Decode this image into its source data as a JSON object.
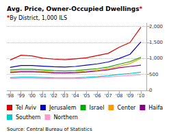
{
  "chart_data": {
    "type": "line",
    "title": "Avg. Price, Owner-Occupied Dwellings*",
    "subtitle": "*By District, 1,000 ILS",
    "annotations": [
      "Source: Central Bureau of Statistics"
    ],
    "x": [
      1998,
      1999,
      2000,
      2001,
      2002,
      2003,
      2004,
      2005,
      2006,
      2007,
      2008,
      2009,
      2010
    ],
    "series": [
      {
        "name": "Tel Aviv",
        "color": "#dd0000",
        "values": [
          950,
          1100,
          1080,
          1010,
          980,
          960,
          990,
          1020,
          1090,
          1160,
          1350,
          1500,
          1980
        ]
      },
      {
        "name": "Jerusalem",
        "color": "#0000cc",
        "values": [
          720,
          780,
          780,
          760,
          740,
          730,
          750,
          790,
          830,
          890,
          1000,
          1130,
          1520
        ]
      },
      {
        "name": "Israel",
        "color": "#00aa00",
        "values": [
          640,
          660,
          660,
          640,
          620,
          610,
          620,
          650,
          680,
          730,
          820,
          900,
          1040
        ]
      },
      {
        "name": "Center",
        "color": "#ff9900",
        "values": [
          590,
          610,
          610,
          590,
          570,
          560,
          570,
          600,
          630,
          680,
          760,
          840,
          1010
        ]
      },
      {
        "name": "Haifa",
        "color": "#880088",
        "values": [
          560,
          580,
          580,
          570,
          550,
          545,
          555,
          575,
          605,
          645,
          710,
          750,
          790
        ]
      },
      {
        "name": "Southern",
        "color": "#00cccc",
        "values": [
          400,
          415,
          415,
          405,
          395,
          390,
          395,
          410,
          430,
          460,
          500,
          530,
          570
        ]
      },
      {
        "name": "Northern",
        "color": "#ff99cc",
        "values": [
          370,
          385,
          385,
          378,
          370,
          365,
          372,
          382,
          398,
          418,
          448,
          468,
          488
        ]
      }
    ],
    "xlim": [
      1997.7,
      2010.5
    ],
    "xticks": [
      {
        "value": 1998,
        "label": "'98"
      },
      {
        "value": 1999,
        "label": "'99"
      },
      {
        "value": 2000,
        "label": "'00"
      },
      {
        "value": 2001,
        "label": "'01"
      },
      {
        "value": 2002,
        "label": "'02"
      },
      {
        "value": 2003,
        "label": "'03"
      },
      {
        "value": 2004,
        "label": "'04"
      },
      {
        "value": 2005,
        "label": "'05"
      },
      {
        "value": 2006,
        "label": "'06"
      },
      {
        "value": 2007,
        "label": "'07"
      },
      {
        "value": 2008,
        "label": "'08"
      },
      {
        "value": 2009,
        "label": "'09"
      },
      {
        "value": 2010,
        "label": "'10"
      }
    ],
    "ylim": [
      0,
      2100
    ],
    "yticks": [
      0,
      500,
      {
        "value": 1000,
        "label": "1,000"
      },
      {
        "value": 1500,
        "label": "1,500"
      },
      {
        "value": 2000,
        "label": "2,000"
      }
    ],
    "grid": true,
    "legend": "bottom"
  }
}
